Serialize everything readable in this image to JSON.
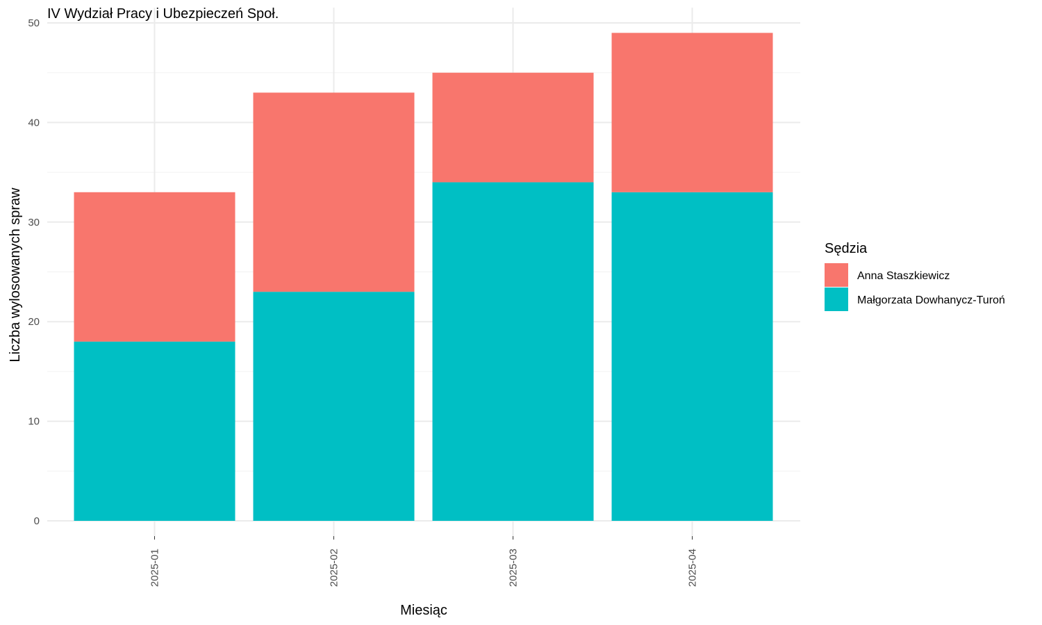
{
  "chart_data": {
    "type": "bar",
    "stacked": true,
    "title": "IV Wydział Pracy i Ubezpieczeń Społ.",
    "xlabel": "Miesiąc",
    "ylabel": "Liczba wylosowanych spraw",
    "categories": [
      "2025-01",
      "2025-02",
      "2025-03",
      "2025-04"
    ],
    "ylim": [
      0,
      50
    ],
    "yticks": [
      0,
      10,
      20,
      30,
      40,
      50
    ],
    "grid": true,
    "legend": {
      "title": "Sędzia",
      "placement": "right"
    },
    "series": [
      {
        "name": "Anna Staszkiewicz",
        "color": "#F8766D",
        "values": [
          15,
          20,
          11,
          16
        ]
      },
      {
        "name": "Małgorzata Dowhanycz-Turoń",
        "color": "#00BFC4",
        "values": [
          18,
          23,
          34,
          33
        ]
      }
    ]
  }
}
